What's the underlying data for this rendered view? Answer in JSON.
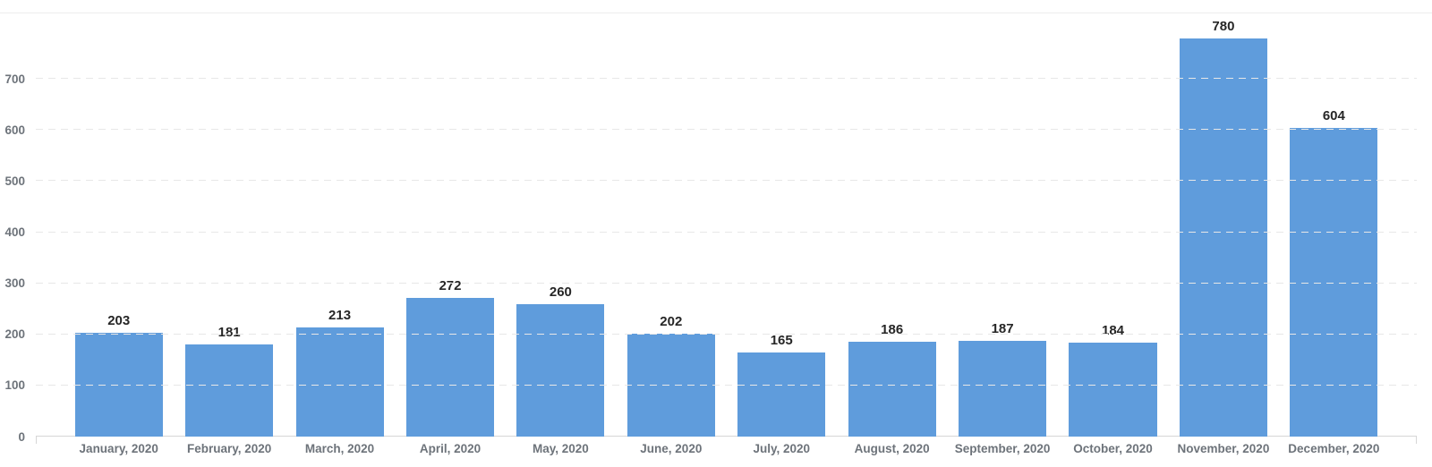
{
  "chart_data": {
    "type": "bar",
    "title": "",
    "xlabel": "",
    "ylabel": "",
    "categories": [
      "January, 2020",
      "February, 2020",
      "March, 2020",
      "April, 2020",
      "May, 2020",
      "June, 2020",
      "July, 2020",
      "August, 2020",
      "September, 2020",
      "October, 2020",
      "November, 2020",
      "December, 2020"
    ],
    "values": [
      203,
      181,
      213,
      272,
      260,
      202,
      165,
      186,
      187,
      184,
      780,
      604
    ],
    "y_ticks": [
      0,
      100,
      200,
      300,
      400,
      500,
      600,
      700
    ],
    "ylim": [
      0,
      830
    ],
    "grid": "horizontal-dashed",
    "legend": "none",
    "colors": {
      "bar": "#5f9cdc",
      "gridline": "#e7e7e7",
      "axis_line": "#d6d6d6",
      "top_border": "#ededed",
      "axis_labels": "#6d737a",
      "value_labels": "#262626"
    }
  }
}
